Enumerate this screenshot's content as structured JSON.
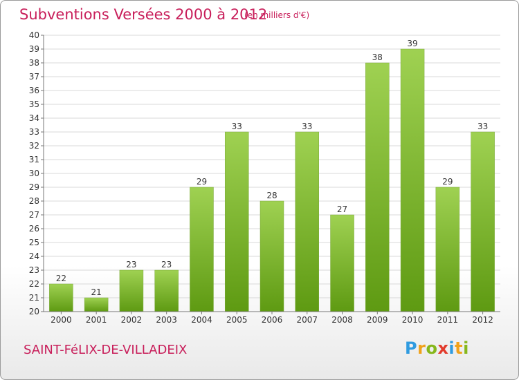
{
  "header": {
    "title": "Subventions Versées 2000 à 2012",
    "subtitle": "(en milliers d'€)"
  },
  "footer": {
    "commune": "SAINT-FéLIX-DE-VILLADEIX",
    "logo": [
      "P",
      "r",
      "o",
      "x",
      "i",
      "t",
      "i"
    ]
  },
  "colors": {
    "title": "#c81e5a",
    "bar_light": "#9fd152",
    "bar_dark": "#5e9a12",
    "grid": "#d8d8d8",
    "axis": "#777777"
  },
  "chart_data": {
    "type": "bar",
    "title": "Subventions Versées 2000 à 2012",
    "subtitle": "(en milliers d'€)",
    "categories": [
      "2000",
      "2001",
      "2002",
      "2003",
      "2004",
      "2005",
      "2006",
      "2007",
      "2008",
      "2009",
      "2010",
      "2011",
      "2012"
    ],
    "values": [
      22,
      21,
      23,
      23,
      29,
      33,
      28,
      33,
      27,
      38,
      39,
      29,
      33
    ],
    "xlabel": "",
    "ylabel": "",
    "ylim": [
      20,
      40
    ],
    "yticks": [
      20,
      21,
      22,
      23,
      24,
      25,
      26,
      27,
      28,
      29,
      30,
      31,
      32,
      33,
      34,
      35,
      36,
      37,
      38,
      39,
      40
    ],
    "grid": true,
    "data_labels": true
  }
}
